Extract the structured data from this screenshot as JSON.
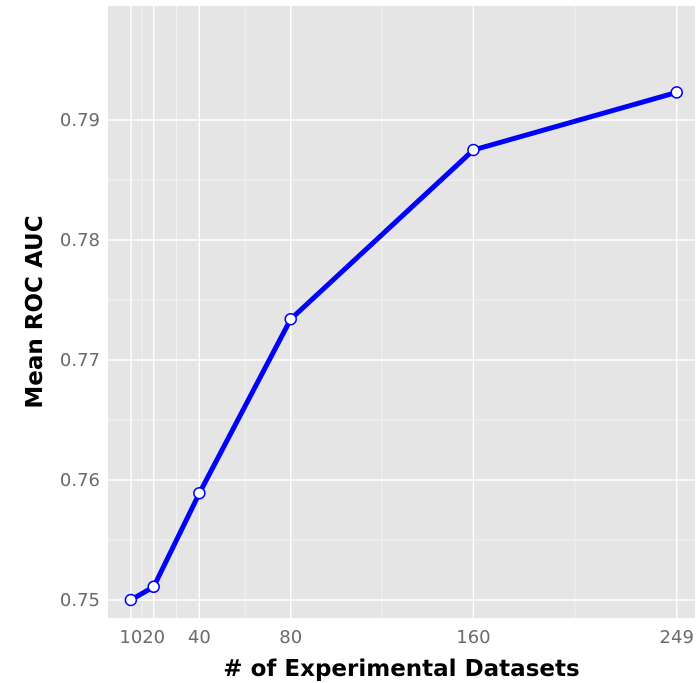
{
  "chart_data": {
    "type": "line",
    "title": "",
    "xlabel": "# of Experimental Datasets",
    "ylabel": "Mean ROC AUC",
    "x": [
      10,
      20,
      40,
      80,
      160,
      249
    ],
    "series": [
      {
        "values": [
          0.75,
          0.7511,
          0.7589,
          0.7734,
          0.7875,
          0.7923
        ]
      }
    ],
    "xlim": [
      0,
      257
    ],
    "ylim": [
      0.7485,
      0.7995
    ],
    "xticks": [
      10,
      20,
      40,
      80,
      160,
      249
    ],
    "xtick_labels": [
      "10",
      "20",
      "40",
      "80",
      "160",
      "249"
    ],
    "yticks": [
      0.75,
      0.76,
      0.77,
      0.78,
      0.79
    ],
    "ytick_labels": [
      "0.75",
      "0.76",
      "0.77",
      "0.78",
      "0.79"
    ],
    "grid": true,
    "legend": "none",
    "colors": {
      "panel_background": "#e5e5e5",
      "grid_major": "#ffffff",
      "grid_minor": "#f2f2f2",
      "line": "#0000ff",
      "marker_fill": "#ffffff",
      "marker_stroke": "#0000ff"
    }
  }
}
